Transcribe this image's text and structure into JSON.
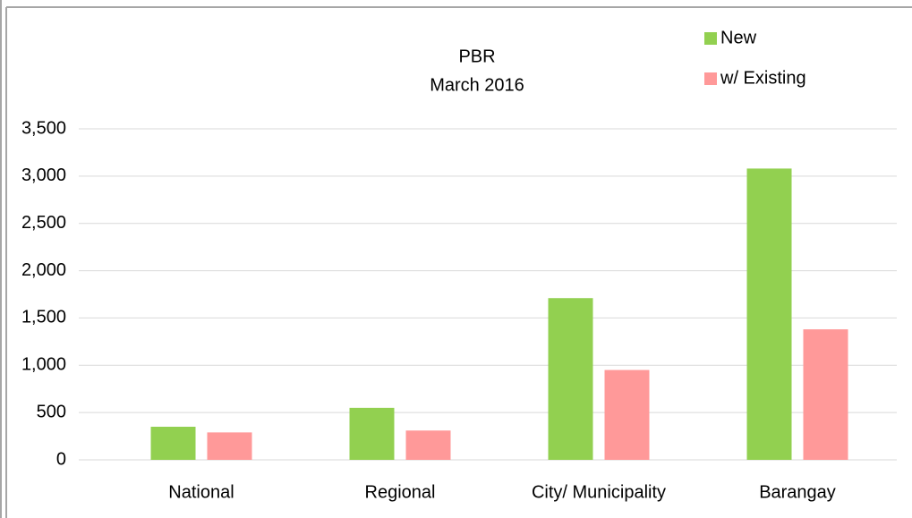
{
  "chart_data": {
    "type": "bar",
    "title": "PBR",
    "subtitle": "March 2016",
    "categories": [
      "National",
      "Regional",
      "City/ Municipality",
      "Barangay"
    ],
    "series": [
      {
        "name": "New",
        "color": "#92d050",
        "values": [
          350,
          550,
          1710,
          3080
        ]
      },
      {
        "name": "w/ Existing",
        "color": "#ff9999",
        "values": [
          290,
          310,
          950,
          1380
        ]
      }
    ],
    "ylim": [
      0,
      3500
    ],
    "yticks": [
      0,
      500,
      {
        "value": 1000,
        "label": "1,000"
      },
      {
        "value": 1500,
        "label": "1,500"
      },
      {
        "value": 2000,
        "label": "2,000"
      },
      {
        "value": 2500,
        "label": "2,500"
      },
      {
        "value": 3000,
        "label": "3,000"
      },
      {
        "value": 3500,
        "label": "3,500"
      }
    ],
    "grid": true,
    "legend": "top-right"
  }
}
